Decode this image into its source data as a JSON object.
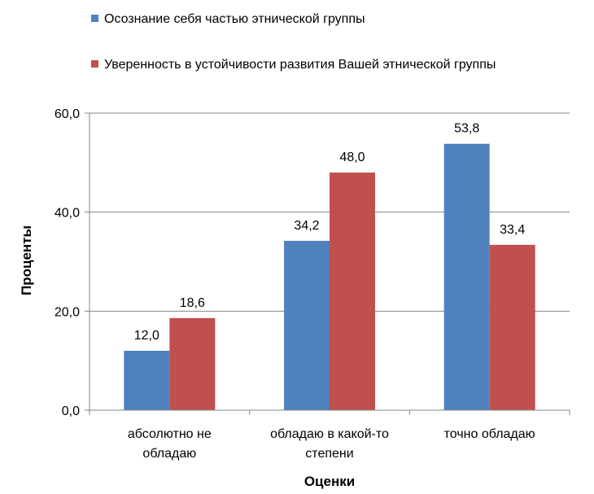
{
  "chart_data": {
    "type": "bar",
    "categories": [
      [
        "абсолютно не",
        "обладаю"
      ],
      [
        "обладаю в какой-то",
        "степени"
      ],
      [
        "точно обладаю"
      ]
    ],
    "series": [
      {
        "name": "Осознание себя частью этнической группы",
        "color": "#4F81BD",
        "values": [
          12.0,
          34.2,
          53.8
        ],
        "labels": [
          "12,0",
          "34,2",
          "53,8"
        ]
      },
      {
        "name": "Уверенность в устойчивости развития Вашей этнической группы",
        "color": "#C0504D",
        "values": [
          18.6,
          48.0,
          33.4
        ],
        "labels": [
          "18,6",
          "48,0",
          "33,4"
        ]
      }
    ],
    "yticks": [
      0,
      20,
      40,
      60
    ],
    "ytick_labels": [
      "0,0",
      "20,0",
      "40,0",
      "60,0"
    ],
    "ylim": [
      0,
      60
    ],
    "xlabel": "Оценки",
    "ylabel": "Проценты",
    "grid": "horizontal",
    "legend_position": "top-left"
  }
}
